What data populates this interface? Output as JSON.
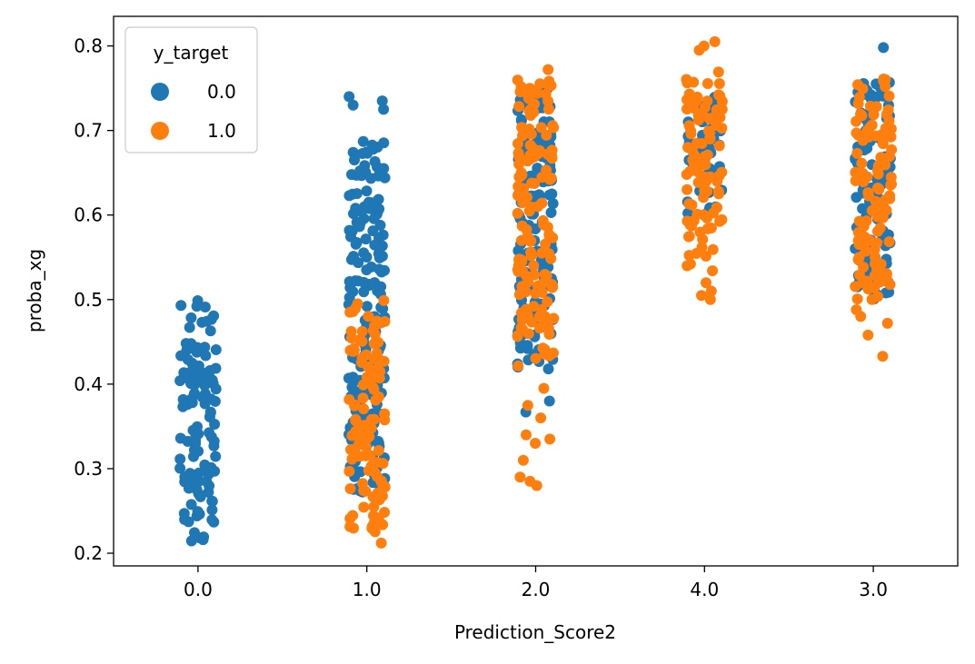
{
  "chart_data": {
    "type": "scatter",
    "subtype": "strip",
    "xlabel": "Prediction_Score2",
    "ylabel": "proba_xg",
    "categories": [
      "0.0",
      "1.0",
      "2.0",
      "4.0",
      "3.0"
    ],
    "ylim": [
      0.185,
      0.835
    ],
    "y_ticks": [
      "0.2",
      "0.3",
      "0.4",
      "0.5",
      "0.6",
      "0.7",
      "0.8"
    ],
    "y_tick_values": [
      0.2,
      0.3,
      0.4,
      0.5,
      0.6,
      0.7,
      0.8
    ],
    "grid": false,
    "legend": {
      "title": "y_target",
      "placement": "top-left",
      "entries": [
        {
          "label": "0.0",
          "color": "#1f77b4"
        },
        {
          "label": "1.0",
          "color": "#ff7f0e"
        }
      ]
    },
    "series": [
      {
        "label": "0.0",
        "color": "#1f77b4",
        "groups": [
          {
            "category": "0.0",
            "y_range": [
              0.212,
              0.5
            ],
            "outliers": []
          },
          {
            "category": "1.0",
            "y_range": [
              0.27,
              0.69
            ],
            "outliers": [
              0.735,
              0.74,
              0.725,
              0.73,
              0.365
            ]
          },
          {
            "category": "2.0",
            "y_range": [
              0.42,
              0.765
            ],
            "outliers": [
              0.38,
              0.367,
              0.418
            ]
          },
          {
            "category": "4.0",
            "y_range": [
              0.6,
              0.74
            ],
            "outliers": []
          },
          {
            "category": "3.0",
            "y_range": [
              0.5,
              0.765
            ],
            "outliers": [
              0.798
            ]
          }
        ]
      },
      {
        "label": "1.0",
        "color": "#ff7f0e",
        "groups": [
          {
            "category": "0.0",
            "y_range": [],
            "outliers": []
          },
          {
            "category": "1.0",
            "y_range": [
              0.225,
              0.5
            ],
            "outliers": [
              0.212
            ]
          },
          {
            "category": "2.0",
            "y_range": [
              0.42,
              0.765
            ],
            "outliers": [
              0.28,
              0.285,
              0.29,
              0.31,
              0.33,
              0.335,
              0.34,
              0.36,
              0.375,
              0.395,
              0.772
            ]
          },
          {
            "category": "4.0",
            "y_range": [
              0.53,
              0.77
            ],
            "outliers": [
              0.5,
              0.505,
              0.51,
              0.52,
              0.8,
              0.805,
              0.795
            ]
          },
          {
            "category": "3.0",
            "y_range": [
              0.5,
              0.765
            ],
            "outliers": [
              0.433,
              0.458,
              0.472,
              0.48,
              0.488
            ]
          }
        ]
      }
    ]
  }
}
